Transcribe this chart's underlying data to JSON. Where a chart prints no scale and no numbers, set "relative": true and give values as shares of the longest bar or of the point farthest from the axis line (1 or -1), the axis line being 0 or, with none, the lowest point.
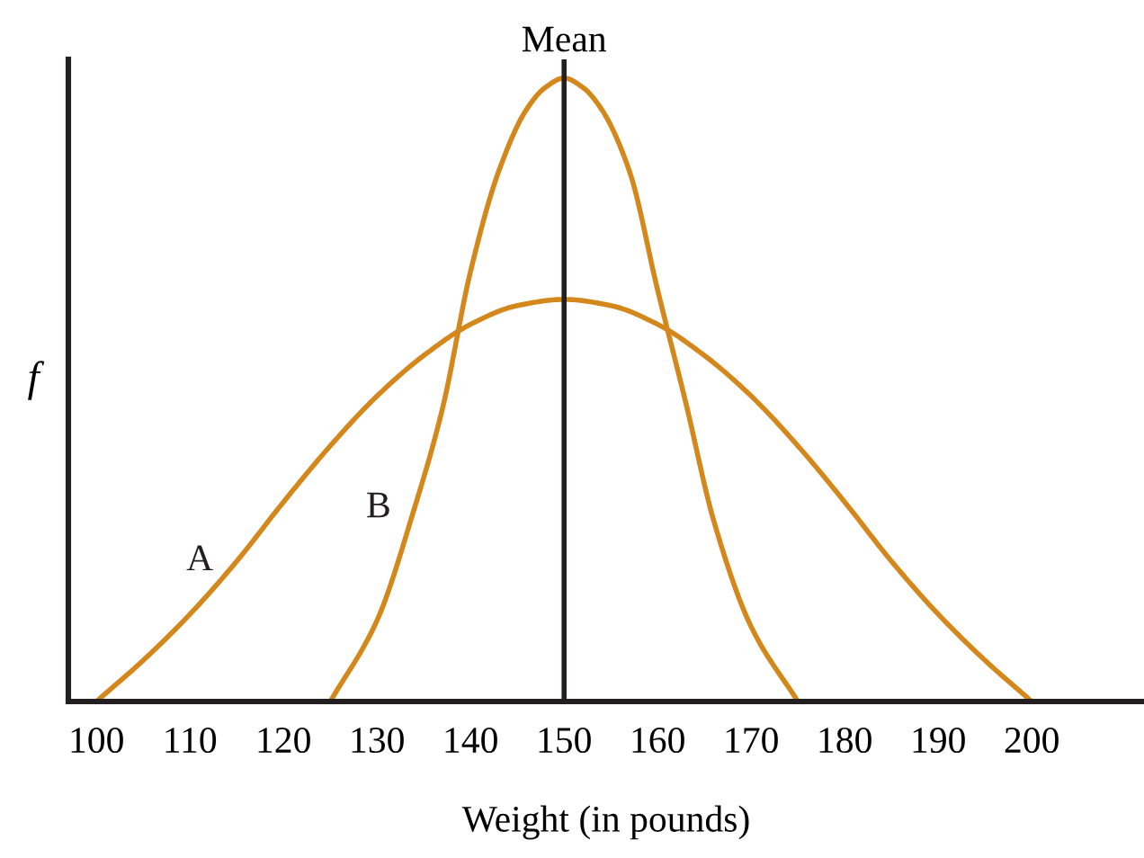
{
  "chart_data": {
    "type": "line",
    "xlabel": "Weight (in pounds)",
    "ylabel": "f",
    "relative": true,
    "xlim": [
      97,
      212
    ],
    "xticks": [
      100,
      110,
      120,
      130,
      140,
      150,
      160,
      170,
      180,
      190,
      200
    ],
    "grid": false,
    "legend": false,
    "marker": "none",
    "line_style": "solid",
    "ref_lines": [
      {
        "axis": "x",
        "value": 150,
        "label": "Mean",
        "color": "#231f20"
      }
    ],
    "series": [
      {
        "name": "A",
        "color": "#d4881c",
        "x": [
          100,
          105,
          110,
          115,
          120,
          125,
          130,
          135,
          140,
          145,
          150,
          155,
          160,
          165,
          170,
          175,
          180,
          185,
          190,
          195,
          200
        ],
        "values": [
          0,
          0.066,
          0.14,
          0.225,
          0.32,
          0.41,
          0.49,
          0.555,
          0.605,
          0.635,
          0.645,
          0.635,
          0.605,
          0.555,
          0.49,
          0.41,
          0.32,
          0.225,
          0.14,
          0.066,
          0
        ]
      },
      {
        "name": "B",
        "color": "#d4881c",
        "x": [
          125,
          130,
          134,
          137,
          140,
          143,
          146,
          148,
          150,
          152,
          154,
          157,
          160,
          163,
          166,
          170,
          175
        ],
        "values": [
          0,
          0.13,
          0.31,
          0.47,
          0.69,
          0.85,
          0.95,
          0.985,
          1,
          0.985,
          0.95,
          0.85,
          0.66,
          0.48,
          0.29,
          0.12,
          0
        ]
      }
    ]
  }
}
